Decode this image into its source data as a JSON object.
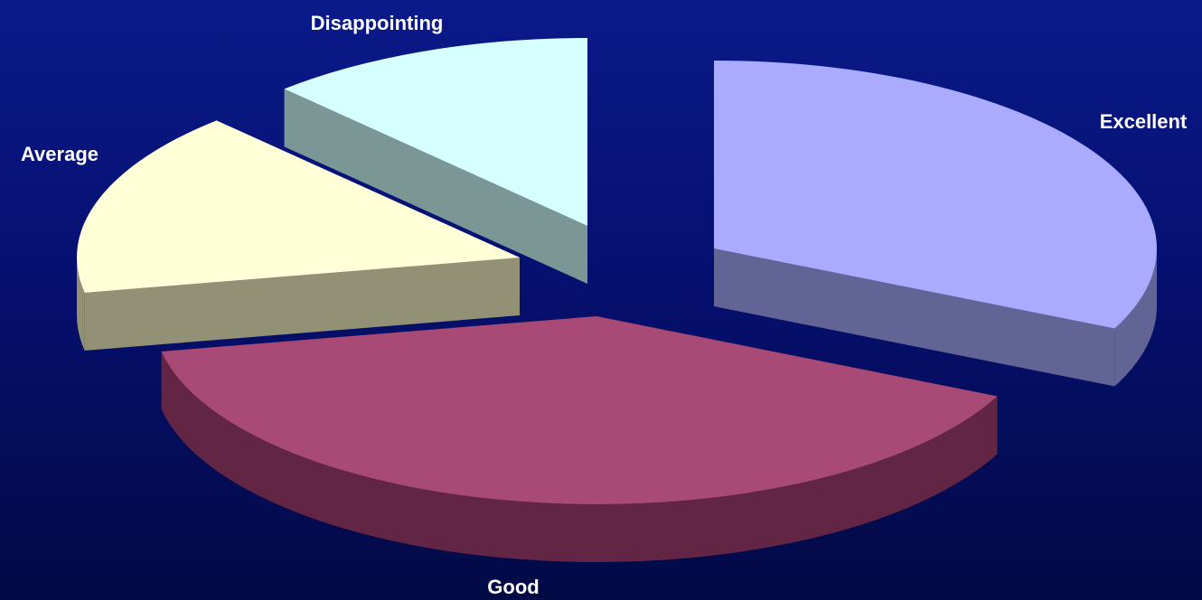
{
  "chart_data": {
    "type": "pie",
    "style": "3d-exploded",
    "title": "",
    "slices": [
      {
        "label": "Excellent",
        "value": 32,
        "color": "#aaaaff",
        "side_color": "#636496"
      },
      {
        "label": "Good",
        "value": 40,
        "color": "#a84a75",
        "side_color": "#622544"
      },
      {
        "label": "Average",
        "value": 16,
        "color": "#ffffd8",
        "side_color": "#929175"
      },
      {
        "label": "Disappointing",
        "value": 12,
        "color": "#d6ffff",
        "side_color": "#7a9695"
      }
    ],
    "background": [
      "#0a1a8a",
      "#020a45"
    ]
  }
}
